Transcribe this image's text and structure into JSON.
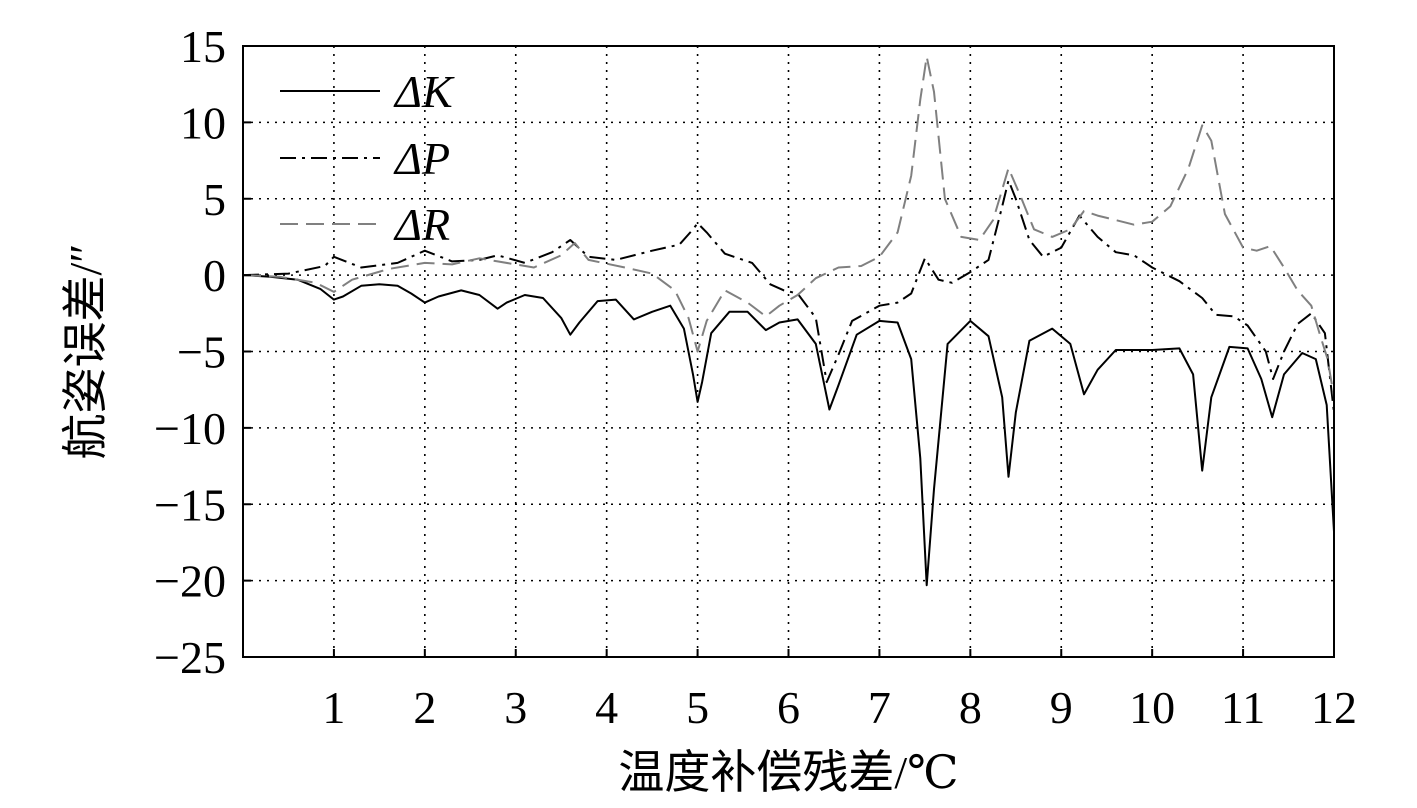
{
  "chart_data": {
    "type": "line",
    "title": "",
    "xlabel": "温度补偿残差/℃",
    "ylabel": "航姿误差/″",
    "xlim": [
      0,
      12
    ],
    "ylim": [
      -25,
      15
    ],
    "x_ticks": [
      1,
      2,
      3,
      4,
      5,
      6,
      7,
      8,
      9,
      10,
      11,
      12
    ],
    "x_tick_labels": [
      "1",
      "2",
      "3",
      "4",
      "5",
      "6",
      "7",
      "8",
      "9",
      "10",
      "11",
      "12"
    ],
    "y_ticks": [
      15,
      10,
      5,
      0,
      -5,
      -10,
      -15,
      -20,
      -25
    ],
    "y_tick_labels": [
      "15",
      "10",
      "5",
      "0",
      "−5",
      "−10",
      "−15",
      "−20",
      "−25"
    ],
    "grid": true,
    "legend_position": "top-left",
    "series": [
      {
        "name": "ΔK",
        "line_style": "solid",
        "color": "#000000",
        "points": [
          [
            0,
            0
          ],
          [
            0.3,
            -0.1
          ],
          [
            0.6,
            -0.3
          ],
          [
            0.85,
            -0.9
          ],
          [
            1.0,
            -1.6
          ],
          [
            1.1,
            -1.4
          ],
          [
            1.3,
            -0.7
          ],
          [
            1.5,
            -0.6
          ],
          [
            1.7,
            -0.7
          ],
          [
            1.85,
            -1.2
          ],
          [
            2.0,
            -1.8
          ],
          [
            2.15,
            -1.4
          ],
          [
            2.4,
            -1.0
          ],
          [
            2.6,
            -1.3
          ],
          [
            2.8,
            -2.2
          ],
          [
            2.9,
            -1.8
          ],
          [
            3.1,
            -1.3
          ],
          [
            3.3,
            -1.5
          ],
          [
            3.5,
            -2.8
          ],
          [
            3.6,
            -3.9
          ],
          [
            3.7,
            -3.1
          ],
          [
            3.9,
            -1.7
          ],
          [
            4.1,
            -1.6
          ],
          [
            4.3,
            -2.9
          ],
          [
            4.5,
            -2.4
          ],
          [
            4.7,
            -2.0
          ],
          [
            4.85,
            -3.5
          ],
          [
            4.95,
            -6.5
          ],
          [
            5.0,
            -8.3
          ],
          [
            5.05,
            -7.0
          ],
          [
            5.15,
            -3.8
          ],
          [
            5.35,
            -2.4
          ],
          [
            5.55,
            -2.4
          ],
          [
            5.75,
            -3.6
          ],
          [
            5.9,
            -3.1
          ],
          [
            6.1,
            -2.9
          ],
          [
            6.3,
            -4.5
          ],
          [
            6.45,
            -8.8
          ],
          [
            6.55,
            -7.2
          ],
          [
            6.75,
            -3.9
          ],
          [
            7.0,
            -3.0
          ],
          [
            7.2,
            -3.1
          ],
          [
            7.35,
            -5.5
          ],
          [
            7.45,
            -12.0
          ],
          [
            7.52,
            -20.3
          ],
          [
            7.6,
            -14.0
          ],
          [
            7.75,
            -4.5
          ],
          [
            8.0,
            -3.0
          ],
          [
            8.2,
            -4.0
          ],
          [
            8.35,
            -8.0
          ],
          [
            8.42,
            -13.2
          ],
          [
            8.5,
            -9.0
          ],
          [
            8.65,
            -4.3
          ],
          [
            8.9,
            -3.5
          ],
          [
            9.1,
            -4.5
          ],
          [
            9.25,
            -7.8
          ],
          [
            9.4,
            -6.2
          ],
          [
            9.6,
            -4.9
          ],
          [
            10.0,
            -4.9
          ],
          [
            10.3,
            -4.8
          ],
          [
            10.45,
            -6.5
          ],
          [
            10.55,
            -12.8
          ],
          [
            10.65,
            -8.0
          ],
          [
            10.85,
            -4.7
          ],
          [
            11.05,
            -4.8
          ],
          [
            11.2,
            -6.8
          ],
          [
            11.32,
            -9.3
          ],
          [
            11.45,
            -6.5
          ],
          [
            11.65,
            -5.1
          ],
          [
            11.8,
            -5.5
          ],
          [
            11.92,
            -8.5
          ],
          [
            12.0,
            -16.8
          ]
        ]
      },
      {
        "name": "ΔP",
        "line_style": "dashdot",
        "color": "#000000",
        "points": [
          [
            0,
            0
          ],
          [
            0.5,
            0.1
          ],
          [
            0.9,
            0.6
          ],
          [
            1.0,
            1.2
          ],
          [
            1.3,
            0.5
          ],
          [
            1.7,
            0.8
          ],
          [
            2.0,
            1.6
          ],
          [
            2.3,
            0.9
          ],
          [
            2.6,
            1.0
          ],
          [
            2.8,
            1.3
          ],
          [
            3.1,
            0.8
          ],
          [
            3.4,
            1.5
          ],
          [
            3.6,
            2.3
          ],
          [
            3.8,
            1.2
          ],
          [
            4.1,
            1.0
          ],
          [
            4.5,
            1.6
          ],
          [
            4.8,
            2.0
          ],
          [
            4.95,
            3.0
          ],
          [
            5.0,
            3.4
          ],
          [
            5.1,
            2.8
          ],
          [
            5.3,
            1.4
          ],
          [
            5.6,
            0.8
          ],
          [
            5.8,
            -0.6
          ],
          [
            5.95,
            -1.0
          ],
          [
            6.1,
            -1.2
          ],
          [
            6.3,
            -2.8
          ],
          [
            6.42,
            -7.0
          ],
          [
            6.55,
            -5.2
          ],
          [
            6.7,
            -3.0
          ],
          [
            7.0,
            -2.0
          ],
          [
            7.2,
            -1.8
          ],
          [
            7.35,
            -1.2
          ],
          [
            7.5,
            1.1
          ],
          [
            7.65,
            -0.3
          ],
          [
            7.8,
            -0.5
          ],
          [
            8.0,
            0.2
          ],
          [
            8.2,
            1.0
          ],
          [
            8.35,
            4.5
          ],
          [
            8.42,
            6.2
          ],
          [
            8.5,
            5.0
          ],
          [
            8.65,
            2.3
          ],
          [
            8.8,
            1.2
          ],
          [
            9.0,
            1.8
          ],
          [
            9.2,
            3.9
          ],
          [
            9.4,
            2.5
          ],
          [
            9.6,
            1.5
          ],
          [
            9.8,
            1.3
          ],
          [
            10.0,
            0.5
          ],
          [
            10.3,
            -0.4
          ],
          [
            10.55,
            -1.5
          ],
          [
            10.7,
            -2.6
          ],
          [
            10.9,
            -2.7
          ],
          [
            11.05,
            -3.3
          ],
          [
            11.25,
            -5.0
          ],
          [
            11.33,
            -6.8
          ],
          [
            11.45,
            -5.0
          ],
          [
            11.6,
            -3.2
          ],
          [
            11.75,
            -2.5
          ],
          [
            11.9,
            -3.8
          ],
          [
            12.0,
            -9.0
          ]
        ]
      },
      {
        "name": "ΔR",
        "line_style": "dashed",
        "color": "#808080",
        "points": [
          [
            0,
            0
          ],
          [
            0.4,
            -0.1
          ],
          [
            0.8,
            -0.5
          ],
          [
            1.0,
            -1.1
          ],
          [
            1.2,
            -0.3
          ],
          [
            1.6,
            0.4
          ],
          [
            2.0,
            0.8
          ],
          [
            2.3,
            0.7
          ],
          [
            2.6,
            1.1
          ],
          [
            2.8,
            0.9
          ],
          [
            3.2,
            0.5
          ],
          [
            3.5,
            1.3
          ],
          [
            3.65,
            2.1
          ],
          [
            3.8,
            1.0
          ],
          [
            4.2,
            0.5
          ],
          [
            4.5,
            0.1
          ],
          [
            4.75,
            -1.0
          ],
          [
            4.9,
            -2.8
          ],
          [
            5.0,
            -5.0
          ],
          [
            5.1,
            -3.0
          ],
          [
            5.3,
            -1.0
          ],
          [
            5.55,
            -1.8
          ],
          [
            5.75,
            -2.7
          ],
          [
            5.9,
            -2.0
          ],
          [
            6.1,
            -1.3
          ],
          [
            6.3,
            -0.2
          ],
          [
            6.55,
            0.5
          ],
          [
            6.8,
            0.6
          ],
          [
            7.0,
            1.2
          ],
          [
            7.2,
            2.8
          ],
          [
            7.35,
            6.5
          ],
          [
            7.45,
            11.5
          ],
          [
            7.52,
            14.3
          ],
          [
            7.6,
            12.0
          ],
          [
            7.72,
            5.0
          ],
          [
            7.9,
            2.5
          ],
          [
            8.1,
            2.3
          ],
          [
            8.25,
            3.6
          ],
          [
            8.42,
            7.0
          ],
          [
            8.55,
            5.2
          ],
          [
            8.7,
            3.0
          ],
          [
            8.9,
            2.5
          ],
          [
            9.1,
            3.0
          ],
          [
            9.25,
            4.2
          ],
          [
            9.4,
            3.9
          ],
          [
            9.6,
            3.6
          ],
          [
            9.8,
            3.3
          ],
          [
            10.0,
            3.5
          ],
          [
            10.2,
            4.5
          ],
          [
            10.4,
            7.0
          ],
          [
            10.55,
            9.8
          ],
          [
            10.65,
            8.8
          ],
          [
            10.8,
            4.0
          ],
          [
            11.0,
            1.8
          ],
          [
            11.15,
            1.6
          ],
          [
            11.3,
            1.9
          ],
          [
            11.45,
            0.5
          ],
          [
            11.6,
            -1.0
          ],
          [
            11.75,
            -2.0
          ],
          [
            11.85,
            -4.0
          ],
          [
            11.93,
            -5.5
          ],
          [
            12.0,
            -8.0
          ]
        ]
      }
    ]
  }
}
